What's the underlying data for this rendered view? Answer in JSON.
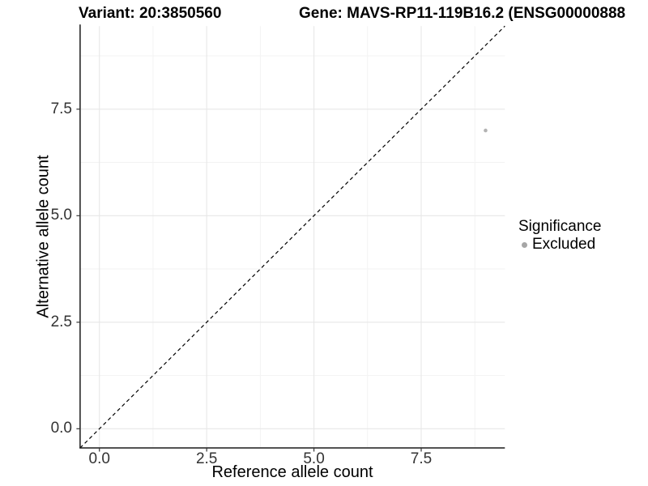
{
  "chart_data": {
    "type": "scatter",
    "titles": {
      "left": "Variant: 20:3850560",
      "right": "Gene: MAVS-RP11-119B16.2 (ENSG00000888"
    },
    "xlabel": "Reference allele count",
    "ylabel": "Alternative allele count",
    "xlim": [
      -0.45,
      9.45
    ],
    "ylim": [
      -0.45,
      9.45
    ],
    "x_ticks": {
      "values": [
        0,
        2.5,
        5,
        7.5
      ],
      "labels": [
        "0.0",
        "2.5",
        "5.0",
        "7.5"
      ]
    },
    "y_ticks": {
      "values": [
        0,
        2.5,
        5,
        7.5
      ],
      "labels": [
        "0.0",
        "2.5",
        "5.0",
        "7.5"
      ]
    },
    "minor_breaks": [
      1.25,
      3.75,
      6.25,
      8.75
    ],
    "grid": {
      "major_color": "#e7e7e7",
      "minor_color": "#f3f3f3"
    },
    "axis_color": "#1a1a1a",
    "tick_label_color": "#333333",
    "reference_line": {
      "style": "dashed",
      "slope": 1,
      "intercept": 0,
      "color": "#000000"
    },
    "series": [
      {
        "name": "Excluded",
        "color": "#b3b3b3",
        "points": [
          {
            "x": 9,
            "y": 7
          }
        ]
      }
    ],
    "legend": {
      "title": "Significance",
      "position": "right",
      "entries": [
        {
          "label": "Excluded",
          "color": "#a6a6a6"
        }
      ]
    }
  }
}
